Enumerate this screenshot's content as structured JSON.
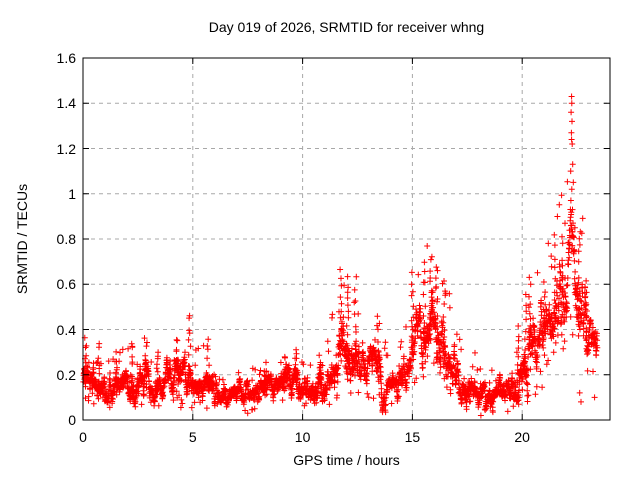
{
  "chart_data": {
    "type": "scatter",
    "title": "Day 019 of 2026, SRMTID for receiver whng",
    "xlabel": "GPS time / hours",
    "ylabel": "SRMTID / TECUs",
    "xlim": [
      0,
      24
    ],
    "ylim": [
      0,
      1.6
    ],
    "xticks": [
      {
        "label": "0",
        "value": 0
      },
      {
        "label": "5",
        "value": 5
      },
      {
        "label": "10",
        "value": 10
      },
      {
        "label": "15",
        "value": 15
      },
      {
        "label": "20",
        "value": 20
      }
    ],
    "yticks": [
      {
        "label": "0",
        "value": 0
      },
      {
        "label": "0.2",
        "value": 0.2
      },
      {
        "label": "0.4",
        "value": 0.4
      },
      {
        "label": "0.6",
        "value": 0.6
      },
      {
        "label": "0.8",
        "value": 0.8
      },
      {
        "label": "1",
        "value": 1
      },
      {
        "label": "1.2",
        "value": 1.2
      },
      {
        "label": "1.4",
        "value": 1.4
      },
      {
        "label": "1.6",
        "value": 1.6
      }
    ],
    "grid": true,
    "legend": "none",
    "marker": {
      "shape": "plus",
      "color": "#ff0000",
      "size": 7
    },
    "grid_color": "#a8a8a8",
    "axis_color": "#000000",
    "series_name": "SRMTID",
    "time_range": [
      0.02,
      23.42
    ],
    "sample_step_hours": 0.008,
    "envelope_keyframes": [
      [
        0.0,
        0.19,
        0.055
      ],
      [
        0.5,
        0.16,
        0.055
      ],
      [
        1.0,
        0.15,
        0.05
      ],
      [
        1.5,
        0.15,
        0.05
      ],
      [
        2.0,
        0.17,
        0.055
      ],
      [
        2.5,
        0.16,
        0.055
      ],
      [
        3.0,
        0.17,
        0.055
      ],
      [
        3.5,
        0.16,
        0.05
      ],
      [
        4.0,
        0.17,
        0.055
      ],
      [
        4.6,
        0.19,
        0.07
      ],
      [
        5.0,
        0.16,
        0.055
      ],
      [
        5.5,
        0.15,
        0.055
      ],
      [
        6.0,
        0.13,
        0.04
      ],
      [
        6.5,
        0.12,
        0.035
      ],
      [
        7.0,
        0.11,
        0.035
      ],
      [
        7.5,
        0.11,
        0.035
      ],
      [
        8.0,
        0.12,
        0.035
      ],
      [
        8.5,
        0.14,
        0.04
      ],
      [
        9.0,
        0.16,
        0.045
      ],
      [
        9.5,
        0.17,
        0.05
      ],
      [
        10.0,
        0.15,
        0.045
      ],
      [
        10.5,
        0.14,
        0.045
      ],
      [
        11.0,
        0.17,
        0.05
      ],
      [
        11.4,
        0.22,
        0.08
      ],
      [
        11.8,
        0.36,
        0.11
      ],
      [
        12.1,
        0.34,
        0.11
      ],
      [
        12.4,
        0.3,
        0.1
      ],
      [
        12.8,
        0.22,
        0.06
      ],
      [
        13.2,
        0.21,
        0.06
      ],
      [
        13.5,
        0.2,
        0.07
      ],
      [
        14.0,
        0.15,
        0.045
      ],
      [
        14.4,
        0.17,
        0.05
      ],
      [
        14.8,
        0.27,
        0.09
      ],
      [
        15.2,
        0.35,
        0.1
      ],
      [
        15.8,
        0.45,
        0.11
      ],
      [
        16.2,
        0.41,
        0.11
      ],
      [
        16.6,
        0.3,
        0.09
      ],
      [
        17.0,
        0.22,
        0.07
      ],
      [
        17.5,
        0.17,
        0.055
      ],
      [
        18.0,
        0.13,
        0.045
      ],
      [
        18.5,
        0.1,
        0.035
      ],
      [
        19.0,
        0.11,
        0.04
      ],
      [
        19.5,
        0.14,
        0.05
      ],
      [
        19.9,
        0.2,
        0.065
      ],
      [
        20.3,
        0.28,
        0.11
      ],
      [
        20.7,
        0.33,
        0.11
      ],
      [
        21.1,
        0.4,
        0.12
      ],
      [
        21.5,
        0.48,
        0.13
      ],
      [
        21.9,
        0.57,
        0.14
      ],
      [
        22.2,
        0.72,
        0.18
      ],
      [
        22.5,
        0.66,
        0.13
      ],
      [
        22.8,
        0.5,
        0.12
      ],
      [
        23.1,
        0.38,
        0.1
      ],
      [
        23.42,
        0.33,
        0.08
      ]
    ],
    "bursts": [
      [
        0.12,
        0.35
      ],
      [
        0.7,
        0.33
      ],
      [
        1.5,
        0.3
      ],
      [
        2.2,
        0.33
      ],
      [
        2.85,
        0.35
      ],
      [
        3.4,
        0.3
      ],
      [
        4.3,
        0.36
      ],
      [
        4.85,
        0.46
      ],
      [
        5.7,
        0.37
      ],
      [
        8.3,
        0.24
      ],
      [
        9.2,
        0.28
      ],
      [
        9.7,
        0.32
      ],
      [
        10.8,
        0.28
      ],
      [
        11.75,
        0.67
      ],
      [
        12.05,
        0.63
      ],
      [
        12.4,
        0.62
      ],
      [
        13.45,
        0.45
      ],
      [
        15.0,
        0.66
      ],
      [
        15.55,
        0.7
      ],
      [
        15.85,
        0.73
      ],
      [
        16.1,
        0.68
      ],
      [
        16.45,
        0.6
      ],
      [
        19.8,
        0.4
      ],
      [
        20.15,
        0.55
      ],
      [
        20.35,
        0.65
      ],
      [
        21.0,
        0.6
      ],
      [
        21.5,
        0.8
      ],
      [
        21.8,
        0.82
      ],
      [
        22.6,
        0.85
      ],
      [
        22.9,
        0.62
      ]
    ],
    "outliers": [
      [
        22.25,
        1.43
      ],
      [
        22.26,
        1.4
      ],
      [
        22.23,
        1.36
      ],
      [
        22.27,
        1.32
      ],
      [
        22.24,
        1.27
      ],
      [
        22.25,
        1.24
      ],
      [
        22.28,
        1.22
      ],
      [
        22.3,
        1.13
      ],
      [
        22.21,
        1.1
      ],
      [
        22.33,
        1.05
      ],
      [
        22.26,
        1.02
      ],
      [
        22.22,
        0.97
      ],
      [
        22.29,
        0.93
      ],
      [
        21.95,
        0.87
      ],
      [
        22.4,
        0.85
      ],
      [
        18.12,
        0.02
      ],
      [
        7.5,
        0.03
      ],
      [
        22.62,
        0.12
      ],
      [
        22.68,
        0.08
      ],
      [
        23.3,
        0.1
      ]
    ]
  }
}
